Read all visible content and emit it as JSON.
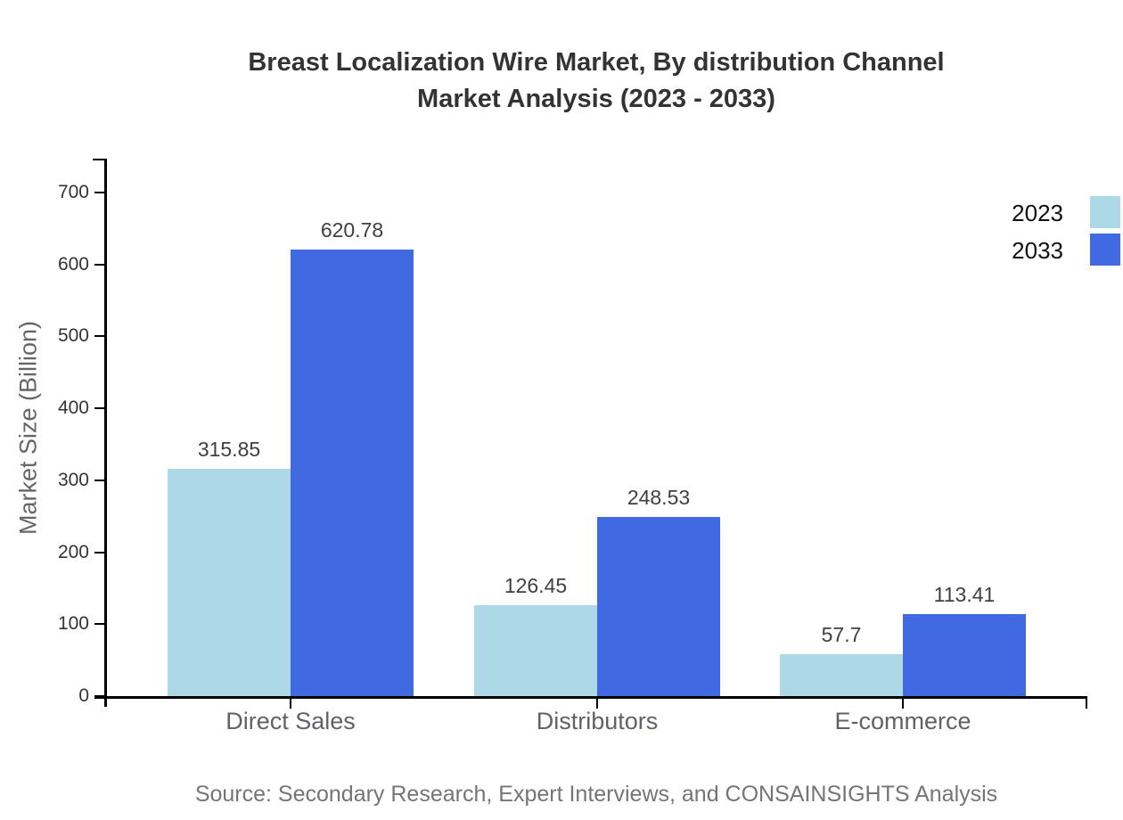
{
  "title": {
    "line1": "Breast Localization Wire Market, By distribution Channel",
    "line2": "Market Analysis (2023 - 2033)"
  },
  "y_axis_label": "Market Size (Billion)",
  "source_note": "Source: Secondary Research, Expert Interviews, and CONSAINSIGHTS Analysis",
  "chart_data": {
    "type": "bar",
    "title": "Breast Localization Wire Market, By distribution Channel Market Analysis (2023 - 2033)",
    "categories": [
      "Direct Sales",
      "Distributors",
      "E-commerce"
    ],
    "series": [
      {
        "name": "2023",
        "color": "#ADD8E6",
        "values": [
          315.85,
          126.45,
          57.7
        ]
      },
      {
        "name": "2033",
        "color": "#4169E1",
        "values": [
          620.78,
          248.53,
          113.41
        ]
      }
    ],
    "xlabel": "",
    "ylabel": "Market Size (Billion)",
    "ylim": [
      0,
      747
    ],
    "yticks": [
      0,
      100,
      200,
      300,
      400,
      500,
      600,
      700
    ],
    "grid": false,
    "legend_position": "top-right",
    "bar_value_labels": true,
    "axis_color": "#000000"
  }
}
